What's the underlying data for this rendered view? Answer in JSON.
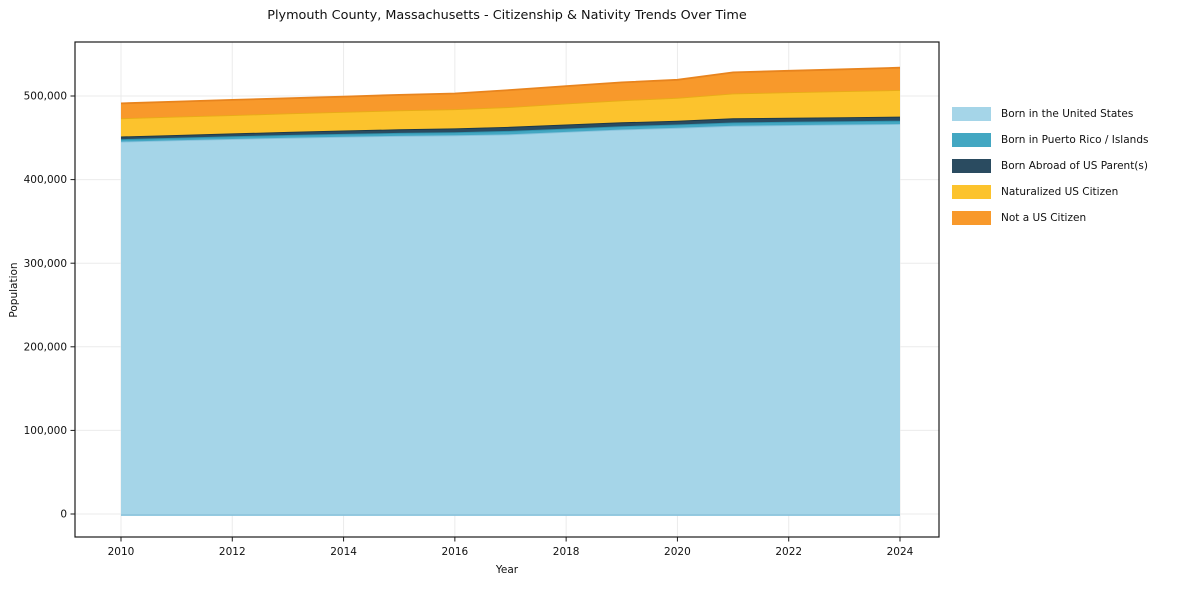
{
  "title": "Plymouth County, Massachusetts - Citizenship & Nativity Trends Over Time",
  "chart_data": {
    "type": "area",
    "stacked": true,
    "title": "Plymouth County, Massachusetts - Citizenship & Nativity Trends Over Time",
    "xlabel": "Year",
    "ylabel": "Population",
    "x": [
      2010,
      2011,
      2012,
      2013,
      2014,
      2015,
      2016,
      2017,
      2018,
      2019,
      2020,
      2021,
      2022,
      2023,
      2024
    ],
    "series": [
      {
        "name": "Born in the United States",
        "color": "#A5D5E8",
        "edge": "#86C2DC",
        "values": [
          445400,
          447100,
          448600,
          450000,
          451300,
          452300,
          453000,
          454200,
          457000,
          459900,
          462000,
          464300,
          465200,
          465900,
          466500
        ]
      },
      {
        "name": "Born in Puerto Rico / Islands",
        "color": "#43A7C2",
        "edge": "#2F93AE",
        "values": [
          2900,
          3000,
          3200,
          3300,
          3400,
          3600,
          3700,
          4000,
          4000,
          4000,
          3900,
          4000,
          4000,
          4000,
          4000
        ]
      },
      {
        "name": "Born Abroad of US Parent(s)",
        "color": "#2A4B60",
        "edge": "#1C3848",
        "values": [
          3200,
          3300,
          3500,
          3800,
          4000,
          4300,
          4500,
          5000,
          4900,
          4700,
          4400,
          5000,
          4900,
          4800,
          4800
        ]
      },
      {
        "name": "Naturalized US Citizen",
        "color": "#FCC32D",
        "edge": "#E8AC17",
        "values": [
          21800,
          21900,
          21900,
          22100,
          22300,
          22700,
          23000,
          23700,
          25100,
          26300,
          27500,
          29700,
          30400,
          31200,
          31900
        ]
      },
      {
        "name": "Not a US Citizen",
        "color": "#F8992B",
        "edge": "#E8841E",
        "values": [
          17900,
          18000,
          18100,
          18100,
          18300,
          18400,
          18800,
          20300,
          20900,
          21400,
          21600,
          25200,
          25600,
          26000,
          26600
        ]
      }
    ],
    "x_ticks": [
      2010,
      2012,
      2014,
      2016,
      2018,
      2020,
      2022,
      2024
    ],
    "y_ticks": [
      0,
      100000,
      200000,
      300000,
      400000,
      500000
    ],
    "y_tick_labels": [
      "0",
      "100,000",
      "200,000",
      "300,000",
      "400,000",
      "500,000"
    ],
    "grid": true,
    "legend_position": "right",
    "axis_color": "#1a1a1a",
    "grid_color": "#ebebeb",
    "background": "#ffffff"
  }
}
